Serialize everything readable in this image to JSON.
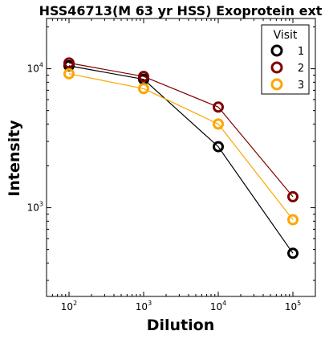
{
  "chart_data": {
    "type": "line",
    "title": "HSS46713(M 63 yr HSS) Exoprotein ext",
    "xlabel": "Dilution",
    "ylabel": "Intensity",
    "x_scale": "log",
    "y_scale": "log",
    "xlim": [
      50,
      200000
    ],
    "ylim": [
      230,
      23000
    ],
    "x_ticks": [
      {
        "value": 100,
        "base": "10",
        "exp": "2"
      },
      {
        "value": 1000,
        "base": "10",
        "exp": "3"
      },
      {
        "value": 10000,
        "base": "10",
        "exp": "4"
      },
      {
        "value": 100000,
        "base": "10",
        "exp": "5"
      }
    ],
    "y_ticks": [
      {
        "value": 1000,
        "base": "10",
        "exp": "3"
      },
      {
        "value": 10000,
        "base": "10",
        "exp": "4"
      }
    ],
    "x": [
      100,
      1000,
      10000,
      100000
    ],
    "series": [
      {
        "name": "1",
        "color": "#000000",
        "values": [
          10500,
          8400,
          2750,
          470
        ]
      },
      {
        "name": "2",
        "color": "#800000",
        "values": [
          11000,
          8800,
          5300,
          1200
        ]
      },
      {
        "name": "3",
        "color": "#FFA500",
        "values": [
          9200,
          7200,
          4000,
          820
        ]
      }
    ],
    "legend": {
      "title": "Visit",
      "placement": "top-right"
    },
    "grid": false
  }
}
